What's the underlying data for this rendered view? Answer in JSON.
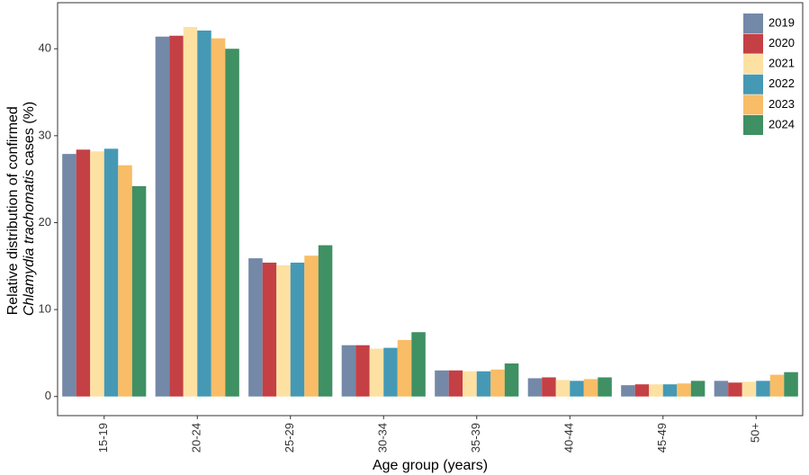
{
  "chart_data": {
    "type": "bar",
    "categories": [
      "15-19",
      "20-24",
      "25-29",
      "30-34",
      "35-39",
      "40-44",
      "45-49",
      "50+"
    ],
    "series": [
      {
        "name": "2019",
        "color": "#7488a8",
        "values": [
          27.9,
          41.4,
          15.9,
          5.9,
          3.0,
          2.1,
          1.3,
          1.8
        ]
      },
      {
        "name": "2020",
        "color": "#c44044",
        "values": [
          28.4,
          41.5,
          15.4,
          5.9,
          3.0,
          2.2,
          1.4,
          1.6
        ]
      },
      {
        "name": "2021",
        "color": "#fde1a3",
        "values": [
          28.2,
          42.5,
          15.1,
          5.5,
          2.9,
          1.9,
          1.4,
          1.7
        ]
      },
      {
        "name": "2022",
        "color": "#4599b5",
        "values": [
          28.5,
          42.1,
          15.4,
          5.6,
          2.9,
          1.8,
          1.4,
          1.8
        ]
      },
      {
        "name": "2023",
        "color": "#f8bd66",
        "values": [
          26.6,
          41.2,
          16.2,
          6.5,
          3.1,
          2.0,
          1.5,
          2.5
        ]
      },
      {
        "name": "2024",
        "color": "#3f9063",
        "values": [
          24.2,
          40.0,
          17.4,
          7.4,
          3.8,
          2.2,
          1.8,
          2.8
        ]
      }
    ],
    "xlabel": "Age group (years)",
    "ylabel_line1": "Relative distribution of confirmed",
    "ylabel_line2_italic": "Chlamydia trachomatis",
    "ylabel_line2_rest": " cases (%)",
    "yticks": [
      0,
      10,
      20,
      30,
      40
    ],
    "ylim": [
      -2.2,
      45.3
    ],
    "grid": false,
    "legend_position": "top-right"
  }
}
